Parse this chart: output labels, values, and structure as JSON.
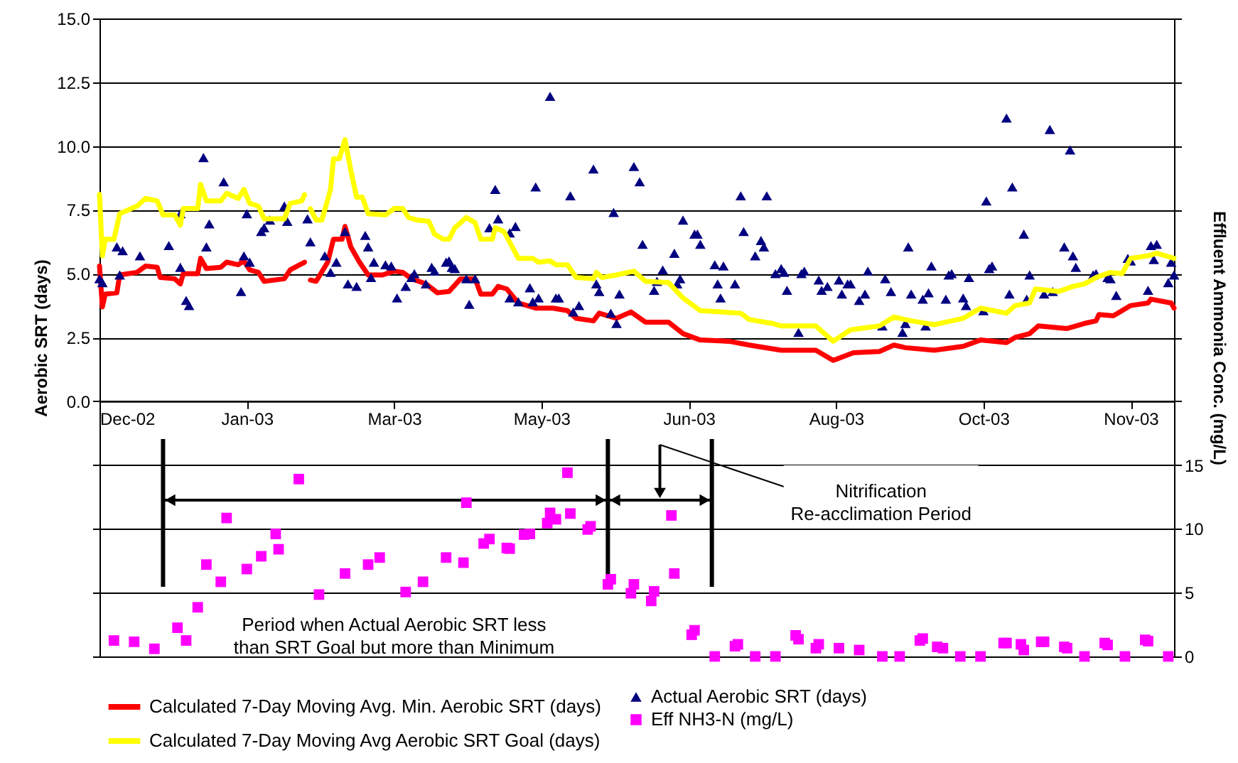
{
  "chart_data": {
    "type": "line",
    "ylabel": "Aerobic SRT (days)",
    "y2label": "Effluent Ammonia Conc. (mg/L)",
    "xlim": [
      "2002-12-01",
      "2003-12-08"
    ],
    "xticks": [
      {
        "value": "2002-12-01",
        "label": "Dec-02"
      },
      {
        "value": "2003-01-21",
        "label": "Jan-03"
      },
      {
        "value": "2003-03-13",
        "label": "Mar-03"
      },
      {
        "value": "2003-05-03",
        "label": "May-03"
      },
      {
        "value": "2003-06-23",
        "label": "Jun-03"
      },
      {
        "value": "2003-08-13",
        "label": "Aug-03"
      },
      {
        "value": "2003-10-03",
        "label": "Oct-03"
      },
      {
        "value": "2003-11-23",
        "label": "Nov-03"
      }
    ],
    "ylim": [
      -10,
      15
    ],
    "yticks": [
      {
        "value": -10,
        "label": null
      },
      {
        "value": -7.5,
        "label": null
      },
      {
        "value": -5,
        "label": null
      },
      {
        "value": -2.5,
        "label": null
      },
      {
        "value": 0,
        "label": "0.0"
      },
      {
        "value": 2.5,
        "label": "2.5"
      },
      {
        "value": 5,
        "label": "5.0"
      },
      {
        "value": 7.5,
        "label": "7.5"
      },
      {
        "value": 10,
        "label": "10.0"
      },
      {
        "value": 12.5,
        "label": "12.5"
      },
      {
        "value": 15,
        "label": "15.0"
      }
    ],
    "y2lim": [
      0,
      50
    ],
    "y2ticks": [
      0,
      5,
      10,
      15,
      {
        "value": 20,
        "label": null
      },
      {
        "value": 25,
        "label": null
      },
      {
        "value": 30,
        "label": null
      },
      {
        "value": 35,
        "label": null
      },
      {
        "value": 40,
        "label": null
      },
      {
        "value": 45,
        "label": null
      },
      {
        "value": 50,
        "label": null
      }
    ],
    "grid": "y",
    "legend": "bottom",
    "ref_lines": [
      {
        "axis": "x",
        "value": "2002-12-23",
        "color": "#000000"
      },
      {
        "axis": "x",
        "value": "2003-05-26",
        "color": "#000000"
      },
      {
        "axis": "x",
        "value": "2003-07-01",
        "color": "#000000"
      }
    ],
    "annotations": [
      "Period when Actual Aerobic SRT less\nthan SRT Goal but more than Minimum",
      "Nitrification\nRe-acclimation Period"
    ],
    "series": [
      {
        "name": "Calculated 7-Day Moving Avg. Min. Aerobic SRT (days)",
        "color": "#ff0000",
        "marker": "none",
        "x": [
          "2002-12-01",
          "2002-12-02",
          "2002-12-03",
          "2002-12-07",
          "2002-12-08",
          "2002-12-14",
          "2002-12-17",
          "2002-12-21",
          "2002-12-22",
          "2002-12-27",
          "2002-12-29",
          "2002-12-30",
          "2003-01-04",
          "2003-01-05",
          "2003-01-07",
          "2003-01-12",
          "2003-01-14",
          "2003-01-18",
          "2003-01-20",
          "2003-01-22",
          "2003-01-25",
          "2003-01-27",
          "2003-02-03",
          "2003-02-05",
          "2003-02-10",
          "2003-02-11",
          "2003-02-12",
          "2003-02-14",
          "2003-02-18",
          "2003-02-20",
          "2003-02-23",
          "2003-02-24",
          "2003-02-26",
          "2003-03-01",
          "2003-03-04",
          "2003-03-09",
          "2003-03-13",
          "2003-03-16",
          "2003-03-19",
          "2003-03-24",
          "2003-03-28",
          "2003-04-01",
          "2003-04-05",
          "2003-04-10",
          "2003-04-12",
          "2003-04-16",
          "2003-04-18",
          "2003-04-21",
          "2003-04-25",
          "2003-05-01",
          "2003-05-07",
          "2003-05-12",
          "2003-05-15",
          "2003-05-21",
          "2003-05-23",
          "2003-05-29",
          "2003-06-03",
          "2003-06-08",
          "2003-06-16",
          "2003-06-21",
          "2003-06-27",
          "2003-07-07",
          "2003-07-14",
          "2003-07-25",
          "2003-08-06",
          "2003-08-12",
          "2003-08-19",
          "2003-08-28",
          "2003-09-02",
          "2003-09-06",
          "2003-09-16",
          "2003-09-26",
          "2003-10-02",
          "2003-10-11",
          "2003-10-14",
          "2003-10-19",
          "2003-10-22",
          "2003-11-01",
          "2003-11-07",
          "2003-11-11",
          "2003-11-12",
          "2003-11-17",
          "2003-11-23",
          "2003-11-29",
          "2003-11-30",
          "2003-12-07",
          "2003-12-08"
        ],
        "values": [
          5.3,
          3.7,
          4.2,
          4.25,
          4.95,
          5.05,
          5.3,
          5.25,
          4.85,
          4.8,
          4.6,
          5.0,
          5.0,
          5.6,
          5.2,
          5.25,
          5.45,
          5.35,
          5.5,
          5.15,
          5.05,
          4.7,
          4.8,
          5.15,
          5.45,
          null,
          4.75,
          4.7,
          5.45,
          6.35,
          6.35,
          6.85,
          6.05,
          5.45,
          4.95,
          4.95,
          5.1,
          5.05,
          4.8,
          4.6,
          4.25,
          4.3,
          4.8,
          4.8,
          4.2,
          4.2,
          4.5,
          4.4,
          3.85,
          3.65,
          3.65,
          3.55,
          3.25,
          3.15,
          3.45,
          3.25,
          3.5,
          3.1,
          3.1,
          2.65,
          2.4,
          2.35,
          2.2,
          2.0,
          2.0,
          1.6,
          1.9,
          1.95,
          2.2,
          2.1,
          2.0,
          2.15,
          2.4,
          2.3,
          2.5,
          2.65,
          2.95,
          2.85,
          3.05,
          3.15,
          3.4,
          3.35,
          3.75,
          3.85,
          4.0,
          3.85,
          3.65
        ]
      },
      {
        "name": "Actual Aerobic SRT (days)",
        "type": "scatter",
        "color": "#000080",
        "marker": "triangle",
        "x": [
          "2002-12-01",
          "2002-12-02",
          "2002-12-07",
          "2002-12-08",
          "2002-12-09",
          "2002-12-15",
          "2002-12-25",
          "2002-12-29",
          "2002-12-29",
          "2002-12-31",
          "2003-01-01",
          "2003-01-06",
          "2003-01-07",
          "2003-01-08",
          "2003-01-13",
          "2003-01-19",
          "2003-01-20",
          "2003-01-21",
          "2003-01-22",
          "2003-01-26",
          "2003-01-27",
          "2003-01-29",
          "2003-02-03",
          "2003-02-04",
          "2003-02-11",
          "2003-02-12",
          "2003-02-17",
          "2003-02-19",
          "2003-02-21",
          "2003-02-24",
          "2003-02-25",
          "2003-02-28",
          "2003-03-03",
          "2003-03-04",
          "2003-03-05",
          "2003-03-06",
          "2003-03-10",
          "2003-03-12",
          "2003-03-14",
          "2003-03-17",
          "2003-03-19",
          "2003-03-20",
          "2003-03-24",
          "2003-03-26",
          "2003-03-27",
          "2003-03-31",
          "2003-04-01",
          "2003-04-02",
          "2003-04-03",
          "2003-04-07",
          "2003-04-08",
          "2003-04-10",
          "2003-04-15",
          "2003-04-17",
          "2003-04-18",
          "2003-04-22",
          "2003-04-24",
          "2003-04-22",
          "2003-04-25",
          "2003-04-29",
          "2003-04-30",
          "2003-05-01",
          "2003-05-02",
          "2003-05-06",
          "2003-05-08",
          "2003-05-09",
          "2003-05-13",
          "2003-05-14",
          "2003-05-16",
          "2003-05-21",
          "2003-05-22",
          "2003-05-23",
          "2003-05-27",
          "2003-05-28",
          "2003-05-29",
          "2003-05-30",
          "2003-06-04",
          "2003-06-06",
          "2003-06-07",
          "2003-06-11",
          "2003-06-12",
          "2003-06-14",
          "2003-06-18",
          "2003-06-19",
          "2003-06-20",
          "2003-06-21",
          "2003-06-25",
          "2003-06-26",
          "2003-06-27",
          "2003-07-02",
          "2003-07-03",
          "2003-07-04",
          "2003-07-05",
          "2003-07-09",
          "2003-07-11",
          "2003-07-12",
          "2003-07-16",
          "2003-07-18",
          "2003-07-19",
          "2003-07-20",
          "2003-07-23",
          "2003-07-25",
          "2003-07-26",
          "2003-07-27",
          "2003-07-31",
          "2003-08-01",
          "2003-08-02",
          "2003-08-07",
          "2003-08-08",
          "2003-08-10",
          "2003-08-14",
          "2003-08-15",
          "2003-08-17",
          "2003-08-18",
          "2003-08-21",
          "2003-08-23",
          "2003-08-24",
          "2003-08-29",
          "2003-08-30",
          "2003-09-01",
          "2003-09-05",
          "2003-09-06",
          "2003-09-07",
          "2003-09-08",
          "2003-09-12",
          "2003-09-13",
          "2003-09-14",
          "2003-09-15",
          "2003-09-20",
          "2003-09-21",
          "2003-09-22",
          "2003-09-26",
          "2003-09-27",
          "2003-09-28",
          "2003-10-03",
          "2003-10-04",
          "2003-10-05",
          "2003-10-06",
          "2003-10-11",
          "2003-10-12",
          "2003-10-13",
          "2003-10-17",
          "2003-10-18",
          "2003-10-19",
          "2003-10-24",
          "2003-10-26",
          "2003-10-27",
          "2003-10-31",
          "2003-11-02",
          "2003-11-03",
          "2003-11-04",
          "2003-11-10",
          "2003-11-11",
          "2003-11-15",
          "2003-11-16",
          "2003-11-18",
          "2003-11-22",
          "2003-11-23",
          "2003-11-29",
          "2003-11-30",
          "2003-12-01",
          "2003-12-02",
          "2003-12-06",
          "2003-12-07",
          "2003-12-08"
        ],
        "values": [
          4.8,
          4.65,
          6.05,
          4.95,
          5.9,
          5.7,
          6.1,
          7.35,
          5.25,
          3.95,
          3.75,
          9.55,
          6.05,
          6.95,
          8.6,
          4.3,
          5.7,
          7.35,
          5.45,
          6.65,
          6.8,
          7.1,
          7.65,
          7.05,
          7.15,
          6.25,
          5.7,
          5.05,
          5.45,
          6.65,
          4.6,
          4.5,
          6.5,
          6.05,
          4.85,
          5.45,
          5.35,
          5.3,
          4.05,
          4.5,
          4.85,
          5.0,
          4.6,
          5.25,
          5.1,
          5.45,
          5.5,
          5.25,
          5.2,
          4.8,
          3.8,
          4.8,
          6.8,
          8.3,
          7.15,
          6.6,
          6.85,
          4.05,
          3.9,
          4.45,
          3.9,
          8.4,
          4.05,
          11.95,
          4.05,
          4.05,
          8.05,
          3.5,
          3.75,
          9.1,
          4.6,
          4.3,
          3.45,
          7.4,
          3.05,
          4.2,
          9.2,
          8.6,
          6.15,
          4.35,
          4.7,
          5.15,
          5.8,
          4.6,
          4.8,
          7.1,
          6.55,
          6.55,
          6.15,
          5.35,
          4.6,
          4.05,
          5.3,
          4.6,
          8.05,
          6.65,
          5.7,
          6.3,
          6.05,
          8.05,
          5.0,
          5.2,
          5.05,
          4.35,
          2.7,
          5.0,
          5.1,
          4.75,
          4.35,
          4.5,
          4.75,
          4.2,
          4.6,
          4.6,
          3.95,
          4.2,
          5.1,
          2.95,
          4.8,
          4.3,
          2.7,
          3.05,
          6.05,
          4.2,
          4.0,
          2.95,
          4.25,
          5.3,
          4.0,
          4.95,
          5.0,
          4.05,
          3.75,
          4.85,
          3.55,
          7.85,
          5.2,
          5.3,
          11.1,
          4.2,
          8.4,
          6.55,
          4.0,
          4.95,
          4.2,
          10.65,
          4.3,
          6.05,
          9.85,
          5.7,
          5.25,
          4.95,
          5.0,
          4.85,
          4.8,
          4.15,
          5.6,
          5.5,
          4.35,
          6.1,
          5.55,
          6.15,
          4.65,
          5.45,
          4.95
        ]
      },
      {
        "name": "Calculated 7-Day Moving Avg Aerobic SRT Goal (days)",
        "color": "#ffff00",
        "marker": "none",
        "x": [
          "2002-12-01",
          "2002-12-02",
          "2002-12-03",
          "2002-12-06",
          "2002-12-08",
          "2002-12-14",
          "2002-12-17",
          "2002-12-21",
          "2002-12-23",
          "2002-12-27",
          "2002-12-29",
          "2002-12-30",
          "2003-01-04",
          "2003-01-05",
          "2003-01-07",
          "2003-01-12",
          "2003-01-14",
          "2003-01-18",
          "2003-01-20",
          "2003-01-22",
          "2003-01-25",
          "2003-01-27",
          "2003-02-03",
          "2003-02-05",
          "2003-02-09",
          "2003-02-10",
          "2003-02-11",
          "2003-02-12",
          "2003-02-14",
          "2003-02-16",
          "2003-02-19",
          "2003-02-20",
          "2003-02-22",
          "2003-02-24",
          "2003-02-26",
          "2003-02-28",
          "2003-03-02",
          "2003-03-04",
          "2003-03-10",
          "2003-03-13",
          "2003-03-16",
          "2003-03-18",
          "2003-03-21",
          "2003-03-25",
          "2003-03-27",
          "2003-03-30",
          "2003-04-01",
          "2003-04-03",
          "2003-04-07",
          "2003-04-10",
          "2003-04-12",
          "2003-04-16",
          "2003-04-17",
          "2003-04-20",
          "2003-04-25",
          "2003-04-30",
          "2003-05-02",
          "2003-05-06",
          "2003-05-08",
          "2003-05-12",
          "2003-05-15",
          "2003-05-21",
          "2003-05-22",
          "2003-05-24",
          "2003-05-29",
          "2003-06-04",
          "2003-06-08",
          "2003-06-16",
          "2003-06-21",
          "2003-06-27",
          "2003-07-04",
          "2003-07-11",
          "2003-07-14",
          "2003-07-22",
          "2003-07-25",
          "2003-08-06",
          "2003-08-12",
          "2003-08-18",
          "2003-08-28",
          "2003-09-02",
          "2003-09-08",
          "2003-09-16",
          "2003-09-26",
          "2003-10-02",
          "2003-10-11",
          "2003-10-14",
          "2003-10-19",
          "2003-10-21",
          "2003-10-29",
          "2003-11-03",
          "2003-11-07",
          "2003-11-11",
          "2003-11-16",
          "2003-11-20",
          "2003-11-23",
          "2003-11-29",
          "2003-12-02",
          "2003-12-08"
        ],
        "values": [
          8.1,
          5.7,
          6.35,
          6.35,
          7.35,
          7.65,
          7.95,
          7.85,
          7.3,
          7.3,
          6.9,
          7.55,
          7.55,
          8.5,
          7.85,
          7.85,
          8.15,
          7.95,
          8.3,
          7.75,
          7.65,
          7.15,
          7.15,
          7.75,
          7.85,
          8.1,
          null,
          7.55,
          7.1,
          7.1,
          8.3,
          9.5,
          9.5,
          10.25,
          9.05,
          8.0,
          8.0,
          7.35,
          7.3,
          7.55,
          7.55,
          7.2,
          7.1,
          7.05,
          6.55,
          6.35,
          6.35,
          6.8,
          7.2,
          7.0,
          6.35,
          6.35,
          6.8,
          6.65,
          5.6,
          5.6,
          5.45,
          5.5,
          5.35,
          5.35,
          4.85,
          4.8,
          5.05,
          4.85,
          4.95,
          5.1,
          4.7,
          4.65,
          4.05,
          3.55,
          3.5,
          3.45,
          3.2,
          3.05,
          2.95,
          2.95,
          2.35,
          2.8,
          2.95,
          3.3,
          3.15,
          3.0,
          3.25,
          3.65,
          3.45,
          3.75,
          3.85,
          4.4,
          4.3,
          4.5,
          4.6,
          4.85,
          5.05,
          5.0,
          5.6,
          5.7,
          5.8,
          5.6
        ]
      },
      {
        "name": "Eff NH3-N (mg/L)",
        "type": "scatter",
        "color": "#ff00ff",
        "marker": "square",
        "axis": "y2",
        "x": [
          "2002-12-06",
          "2002-12-13",
          "2002-12-20",
          "2002-12-28",
          "2002-12-31",
          "2003-01-04",
          "2003-01-07",
          "2003-01-12",
          "2003-01-14",
          "2003-01-21",
          "2003-01-26",
          "2003-01-31",
          "2003-02-01",
          "2003-02-08",
          "2003-02-15",
          "2003-02-24",
          "2003-03-04",
          "2003-03-08",
          "2003-03-17",
          "2003-03-23",
          "2003-03-31",
          "2003-04-06",
          "2003-04-07",
          "2003-04-13",
          "2003-04-15",
          "2003-04-21",
          "2003-04-22",
          "2003-04-27",
          "2003-04-29",
          "2003-05-05",
          "2003-05-06",
          "2003-05-08",
          "2003-05-12",
          "2003-05-13",
          "2003-05-19",
          "2003-05-20",
          "2003-05-26",
          "2003-05-27",
          "2003-06-03",
          "2003-06-04",
          "2003-06-10",
          "2003-06-11",
          "2003-06-17",
          "2003-06-18",
          "2003-06-24",
          "2003-06-25",
          "2003-07-02",
          "2003-07-09",
          "2003-07-10",
          "2003-07-16",
          "2003-07-23",
          "2003-07-30",
          "2003-07-31",
          "2003-08-06",
          "2003-08-07",
          "2003-08-14",
          "2003-08-21",
          "2003-08-29",
          "2003-09-04",
          "2003-09-11",
          "2003-09-12",
          "2003-09-17",
          "2003-09-19",
          "2003-09-25",
          "2003-10-02",
          "2003-10-10",
          "2003-10-11",
          "2003-10-16",
          "2003-10-17",
          "2003-10-23",
          "2003-10-24",
          "2003-10-31",
          "2003-11-01",
          "2003-11-07",
          "2003-11-14",
          "2003-11-15",
          "2003-11-21",
          "2003-11-28",
          "2003-11-29",
          "2003-12-06"
        ],
        "values": [
          1.25,
          1.15,
          0.6,
          2.25,
          1.25,
          3.85,
          7.2,
          5.85,
          10.85,
          6.85,
          7.85,
          9.6,
          8.4,
          13.9,
          4.85,
          6.5,
          7.2,
          7.75,
          5.05,
          5.85,
          7.75,
          7.35,
          12.05,
          8.85,
          9.2,
          8.5,
          8.45,
          9.55,
          9.6,
          10.45,
          11.25,
          10.75,
          14.4,
          11.2,
          9.95,
          10.2,
          5.65,
          6.05,
          4.95,
          5.65,
          4.35,
          5.1,
          11.05,
          6.5,
          1.7,
          2.05,
          0,
          0.8,
          0.95,
          0,
          0,
          1.65,
          1.35,
          0.65,
          0.95,
          0.65,
          0.5,
          0,
          0,
          1.25,
          1.4,
          0.75,
          0.65,
          0,
          0,
          1.05,
          1.05,
          0.95,
          0.5,
          1.15,
          1.15,
          0.75,
          0.65,
          0,
          1.05,
          0.9,
          0,
          1.3,
          1.2,
          0
        ]
      }
    ]
  }
}
